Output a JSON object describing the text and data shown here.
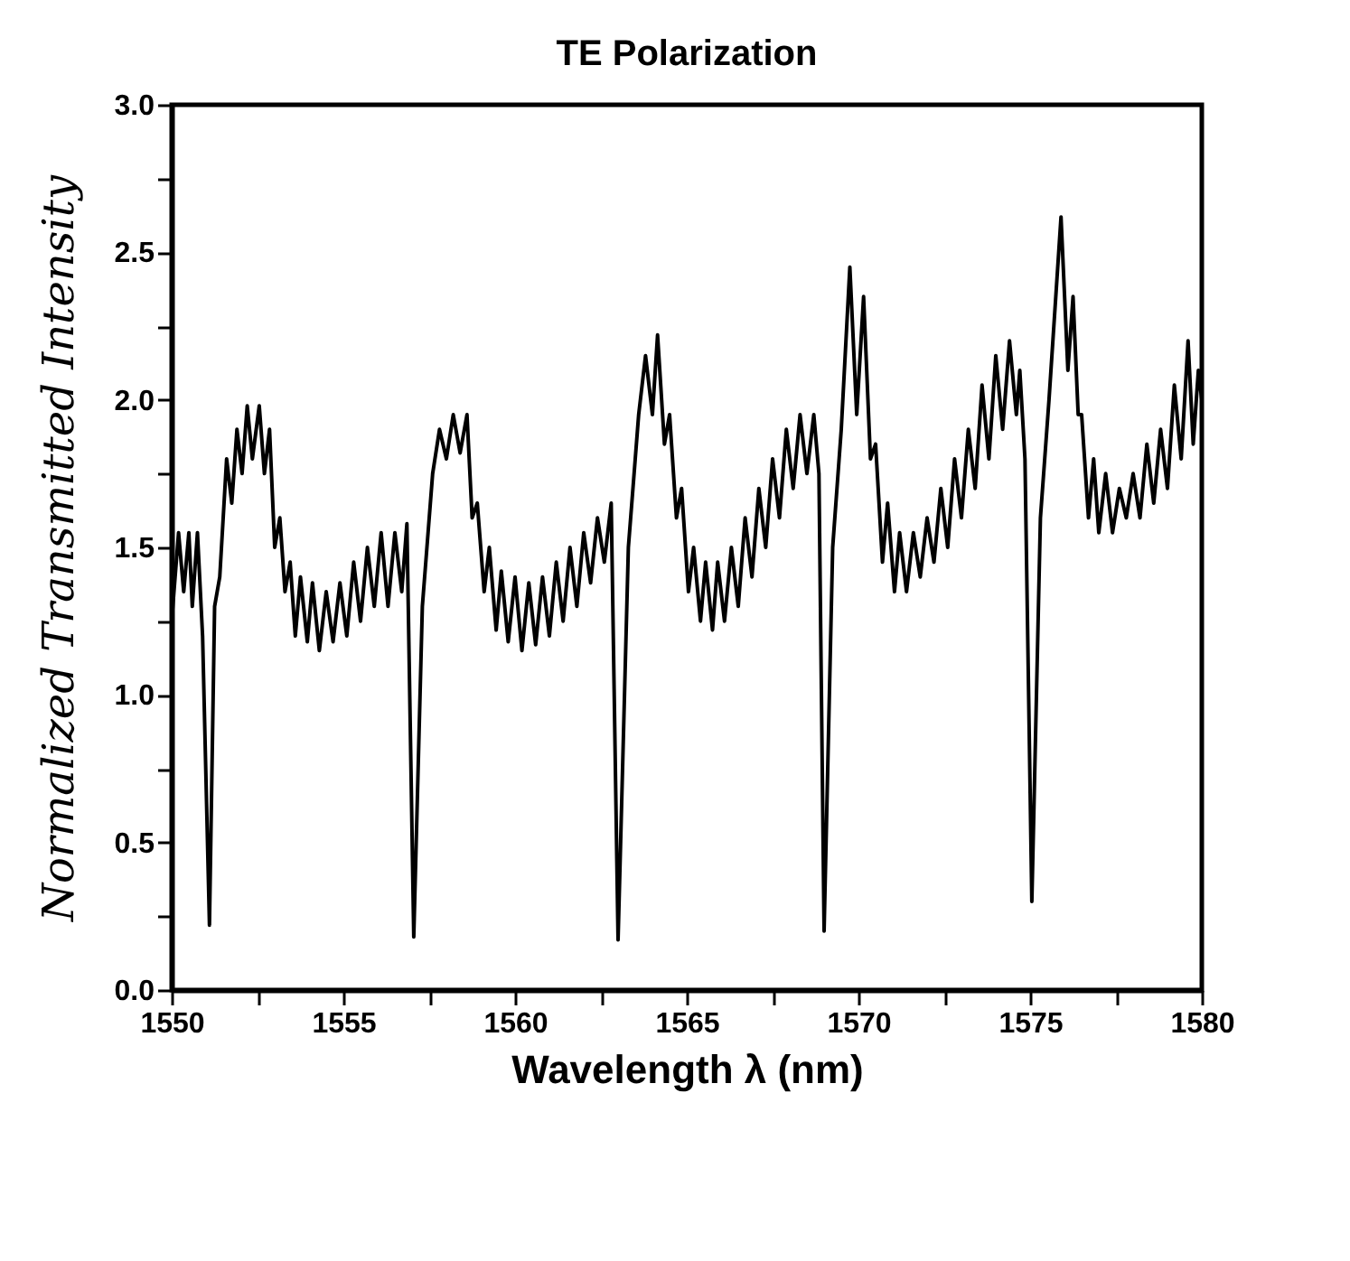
{
  "chart_data": {
    "type": "line",
    "title": "TE Polarization",
    "xlabel": "Wavelength λ (nm)",
    "ylabel": "Normalized Transmitted Intensity",
    "x": [
      1550,
      1550.2,
      1550.35,
      1550.5,
      1550.6,
      1550.75,
      1550.9,
      1551.1,
      1551.25,
      1551.4,
      1551.6,
      1551.75,
      1551.9,
      1552.05,
      1552.2,
      1552.35,
      1552.55,
      1552.7,
      1552.85,
      1553.0,
      1553.15,
      1553.3,
      1553.45,
      1553.6,
      1553.75,
      1553.95,
      1554.1,
      1554.3,
      1554.5,
      1554.7,
      1554.9,
      1555.1,
      1555.3,
      1555.5,
      1555.7,
      1555.9,
      1556.1,
      1556.3,
      1556.5,
      1556.7,
      1556.85,
      1557.05,
      1557.3,
      1557.6,
      1557.8,
      1558.0,
      1558.2,
      1558.4,
      1558.6,
      1558.75,
      1558.9,
      1559.1,
      1559.25,
      1559.45,
      1559.6,
      1559.8,
      1560.0,
      1560.2,
      1560.4,
      1560.6,
      1560.8,
      1561.0,
      1561.2,
      1561.4,
      1561.6,
      1561.8,
      1562.0,
      1562.2,
      1562.4,
      1562.6,
      1562.8,
      1563.0,
      1563.3,
      1563.6,
      1563.8,
      1564.0,
      1564.15,
      1564.35,
      1564.5,
      1564.7,
      1564.85,
      1565.05,
      1565.2,
      1565.4,
      1565.55,
      1565.75,
      1565.9,
      1566.1,
      1566.3,
      1566.5,
      1566.7,
      1566.9,
      1567.1,
      1567.3,
      1567.5,
      1567.7,
      1567.9,
      1568.1,
      1568.3,
      1568.5,
      1568.7,
      1568.85,
      1569.0,
      1569.25,
      1569.5,
      1569.75,
      1569.95,
      1570.15,
      1570.35,
      1570.5,
      1570.7,
      1570.85,
      1571.05,
      1571.2,
      1571.4,
      1571.6,
      1571.8,
      1572.0,
      1572.2,
      1572.4,
      1572.6,
      1572.8,
      1573.0,
      1573.2,
      1573.4,
      1573.6,
      1573.8,
      1574.0,
      1574.2,
      1574.4,
      1574.6,
      1574.7,
      1574.85,
      1575.05,
      1575.3,
      1575.55,
      1575.9,
      1576.1,
      1576.25,
      1576.4,
      1576.5,
      1576.7,
      1576.85,
      1577.0,
      1577.2,
      1577.4,
      1577.6,
      1577.8,
      1578.0,
      1578.2,
      1578.4,
      1578.6,
      1578.8,
      1579.0,
      1579.2,
      1579.4,
      1579.6,
      1579.75,
      1579.9,
      1580
    ],
    "series": [
      {
        "color": "#000000",
        "values": [
          1.25,
          1.55,
          1.35,
          1.55,
          1.3,
          1.55,
          1.2,
          0.22,
          1.3,
          1.4,
          1.8,
          1.65,
          1.9,
          1.75,
          1.98,
          1.8,
          1.98,
          1.75,
          1.9,
          1.5,
          1.6,
          1.35,
          1.45,
          1.2,
          1.4,
          1.18,
          1.38,
          1.15,
          1.35,
          1.18,
          1.38,
          1.2,
          1.45,
          1.25,
          1.5,
          1.3,
          1.55,
          1.3,
          1.55,
          1.35,
          1.58,
          0.18,
          1.3,
          1.75,
          1.9,
          1.8,
          1.95,
          1.82,
          1.95,
          1.6,
          1.65,
          1.35,
          1.5,
          1.22,
          1.42,
          1.18,
          1.4,
          1.15,
          1.38,
          1.17,
          1.4,
          1.2,
          1.45,
          1.25,
          1.5,
          1.3,
          1.55,
          1.38,
          1.6,
          1.45,
          1.65,
          0.17,
          1.5,
          1.95,
          2.15,
          1.95,
          2.22,
          1.85,
          1.95,
          1.6,
          1.7,
          1.35,
          1.5,
          1.25,
          1.45,
          1.22,
          1.45,
          1.25,
          1.5,
          1.3,
          1.6,
          1.4,
          1.7,
          1.5,
          1.8,
          1.6,
          1.9,
          1.7,
          1.95,
          1.75,
          1.95,
          1.75,
          0.2,
          1.5,
          1.9,
          2.45,
          1.95,
          2.35,
          1.8,
          1.85,
          1.45,
          1.65,
          1.35,
          1.55,
          1.35,
          1.55,
          1.4,
          1.6,
          1.45,
          1.7,
          1.5,
          1.8,
          1.6,
          1.9,
          1.7,
          2.05,
          1.8,
          2.15,
          1.9,
          2.2,
          1.95,
          2.1,
          1.8,
          0.3,
          1.6,
          2.0,
          2.62,
          2.1,
          2.35,
          1.95,
          1.95,
          1.6,
          1.8,
          1.55,
          1.75,
          1.55,
          1.7,
          1.6,
          1.75,
          1.6,
          1.85,
          1.65,
          1.9,
          1.7,
          2.05,
          1.8,
          2.2,
          1.85,
          2.1,
          2.0
        ]
      }
    ],
    "xlim": [
      1550,
      1580
    ],
    "ylim": [
      0,
      3
    ],
    "xticks": [
      1550,
      {
        "value": 1552.5,
        "label": null
      },
      1555,
      {
        "value": 1557.5,
        "label": null
      },
      1560,
      {
        "value": 1562.5,
        "label": null
      },
      1565,
      {
        "value": 1567.5,
        "label": null
      },
      1570,
      {
        "value": 1572.5,
        "label": null
      },
      1575,
      {
        "value": 1577.5,
        "label": null
      },
      1580
    ],
    "yticks": [
      {
        "value": 0,
        "label": "0.0"
      },
      {
        "value": 0.25,
        "label": null
      },
      0.5,
      {
        "value": 0.75,
        "label": null
      },
      {
        "value": 1,
        "label": "1.0"
      },
      {
        "value": 1.25,
        "label": null
      },
      1.5,
      {
        "value": 1.75,
        "label": null
      },
      {
        "value": 2,
        "label": "2.0"
      },
      {
        "value": 2.25,
        "label": null
      },
      2.5,
      {
        "value": 2.75,
        "label": null
      },
      {
        "value": 3,
        "label": "3.0"
      }
    ],
    "grid": false,
    "marker": "none",
    "line_style": "solid"
  }
}
